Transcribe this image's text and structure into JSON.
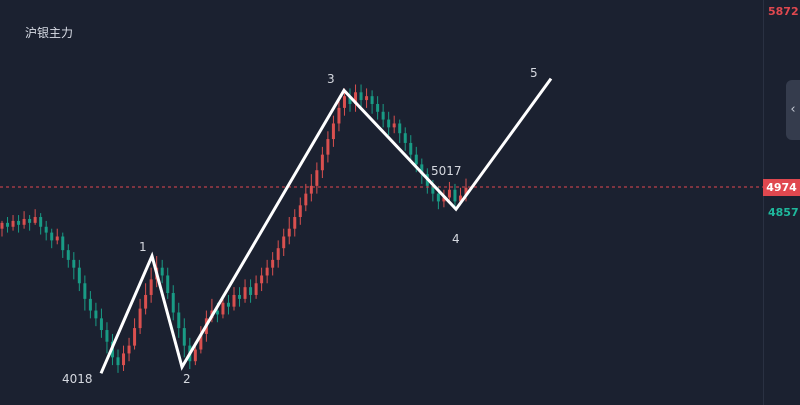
{
  "title": "沪银主力",
  "colors": {
    "up": "#d9504f",
    "down": "#199b85",
    "wave": "#ffffff",
    "current_price": "#e0484f",
    "panel_bg": "#1b2130"
  },
  "price_axis": {
    "high": "5872",
    "current": "4974",
    "low_ref": "4857"
  },
  "wave_labels": [
    "1",
    "2",
    "3",
    "4",
    "5"
  ],
  "annotations": {
    "low": "4018",
    "peak": "5017"
  },
  "collapse_icon": "chevron-left-icon",
  "chart_data": {
    "type": "candlestick",
    "y_top_label": 5872,
    "current_price": 4974,
    "ref_price": 4857,
    "wave_points": [
      {
        "label": "",
        "price": 4018
      },
      {
        "label": "1",
        "price": 4620
      },
      {
        "label": "2",
        "price": 4050
      },
      {
        "label": "3",
        "price": 5470
      },
      {
        "label": "4",
        "price": 4860
      },
      {
        "label": "5",
        "price": 5530
      }
    ],
    "candles": [
      [
        4760,
        4790,
        4800,
        4720
      ],
      [
        4790,
        4770,
        4820,
        4740
      ],
      [
        4770,
        4800,
        4830,
        4750
      ],
      [
        4800,
        4780,
        4830,
        4740
      ],
      [
        4780,
        4810,
        4850,
        4760
      ],
      [
        4810,
        4790,
        4830,
        4750
      ],
      [
        4790,
        4820,
        4860,
        4780
      ],
      [
        4820,
        4770,
        4840,
        4730
      ],
      [
        4770,
        4740,
        4800,
        4700
      ],
      [
        4740,
        4700,
        4760,
        4660
      ],
      [
        4700,
        4720,
        4760,
        4680
      ],
      [
        4720,
        4650,
        4740,
        4610
      ],
      [
        4650,
        4600,
        4680,
        4560
      ],
      [
        4600,
        4560,
        4640,
        4500
      ],
      [
        4560,
        4480,
        4600,
        4440
      ],
      [
        4480,
        4400,
        4520,
        4340
      ],
      [
        4400,
        4340,
        4440,
        4300
      ],
      [
        4340,
        4300,
        4380,
        4260
      ],
      [
        4300,
        4240,
        4350,
        4200
      ],
      [
        4240,
        4180,
        4280,
        4120
      ],
      [
        4180,
        4100,
        4220,
        4060
      ],
      [
        4100,
        4060,
        4140,
        4020
      ],
      [
        4060,
        4120,
        4160,
        4030
      ],
      [
        4120,
        4160,
        4200,
        4080
      ],
      [
        4160,
        4250,
        4300,
        4140
      ],
      [
        4250,
        4350,
        4400,
        4220
      ],
      [
        4350,
        4420,
        4480,
        4320
      ],
      [
        4420,
        4500,
        4560,
        4380
      ],
      [
        4500,
        4560,
        4620,
        4460
      ],
      [
        4560,
        4520,
        4600,
        4480
      ],
      [
        4520,
        4430,
        4560,
        4400
      ],
      [
        4430,
        4330,
        4470,
        4290
      ],
      [
        4330,
        4250,
        4380,
        4200
      ],
      [
        4250,
        4160,
        4300,
        4100
      ],
      [
        4160,
        4080,
        4200,
        4040
      ],
      [
        4080,
        4140,
        4180,
        4060
      ],
      [
        4140,
        4220,
        4260,
        4120
      ],
      [
        4220,
        4300,
        4340,
        4180
      ],
      [
        4300,
        4340,
        4400,
        4280
      ],
      [
        4340,
        4320,
        4380,
        4280
      ],
      [
        4320,
        4380,
        4420,
        4300
      ],
      [
        4380,
        4360,
        4420,
        4320
      ],
      [
        4360,
        4420,
        4460,
        4340
      ],
      [
        4420,
        4400,
        4460,
        4360
      ],
      [
        4400,
        4460,
        4500,
        4380
      ],
      [
        4460,
        4420,
        4500,
        4380
      ],
      [
        4420,
        4480,
        4520,
        4400
      ],
      [
        4480,
        4520,
        4560,
        4440
      ],
      [
        4520,
        4560,
        4600,
        4480
      ],
      [
        4560,
        4600,
        4640,
        4520
      ],
      [
        4600,
        4660,
        4700,
        4560
      ],
      [
        4660,
        4720,
        4760,
        4620
      ],
      [
        4720,
        4760,
        4820,
        4680
      ],
      [
        4760,
        4820,
        4860,
        4720
      ],
      [
        4820,
        4880,
        4920,
        4780
      ],
      [
        4880,
        4940,
        4990,
        4850
      ],
      [
        4940,
        4980,
        5040,
        4900
      ],
      [
        4980,
        5060,
        5100,
        4940
      ],
      [
        5060,
        5140,
        5180,
        5020
      ],
      [
        5140,
        5220,
        5260,
        5100
      ],
      [
        5220,
        5300,
        5340,
        5180
      ],
      [
        5300,
        5380,
        5420,
        5260
      ],
      [
        5380,
        5440,
        5480,
        5340
      ],
      [
        5440,
        5400,
        5480,
        5360
      ],
      [
        5400,
        5460,
        5500,
        5360
      ],
      [
        5460,
        5420,
        5500,
        5380
      ],
      [
        5420,
        5440,
        5480,
        5380
      ],
      [
        5440,
        5400,
        5470,
        5350
      ],
      [
        5400,
        5360,
        5440,
        5320
      ],
      [
        5360,
        5320,
        5400,
        5280
      ],
      [
        5320,
        5280,
        5360,
        5240
      ],
      [
        5280,
        5300,
        5340,
        5250
      ],
      [
        5300,
        5250,
        5320,
        5200
      ],
      [
        5250,
        5200,
        5280,
        5160
      ],
      [
        5200,
        5140,
        5240,
        5100
      ],
      [
        5140,
        5090,
        5180,
        5050
      ],
      [
        5090,
        5040,
        5120,
        4990
      ],
      [
        5040,
        4980,
        5070,
        4940
      ],
      [
        4980,
        4940,
        5010,
        4900
      ],
      [
        4940,
        4900,
        4980,
        4860
      ],
      [
        4900,
        4920,
        4960,
        4870
      ],
      [
        4920,
        4960,
        5000,
        4890
      ],
      [
        4960,
        4900,
        4990,
        4870
      ],
      [
        4900,
        4930,
        4970,
        4880
      ],
      [
        4930,
        4970,
        5017,
        4900
      ]
    ]
  }
}
